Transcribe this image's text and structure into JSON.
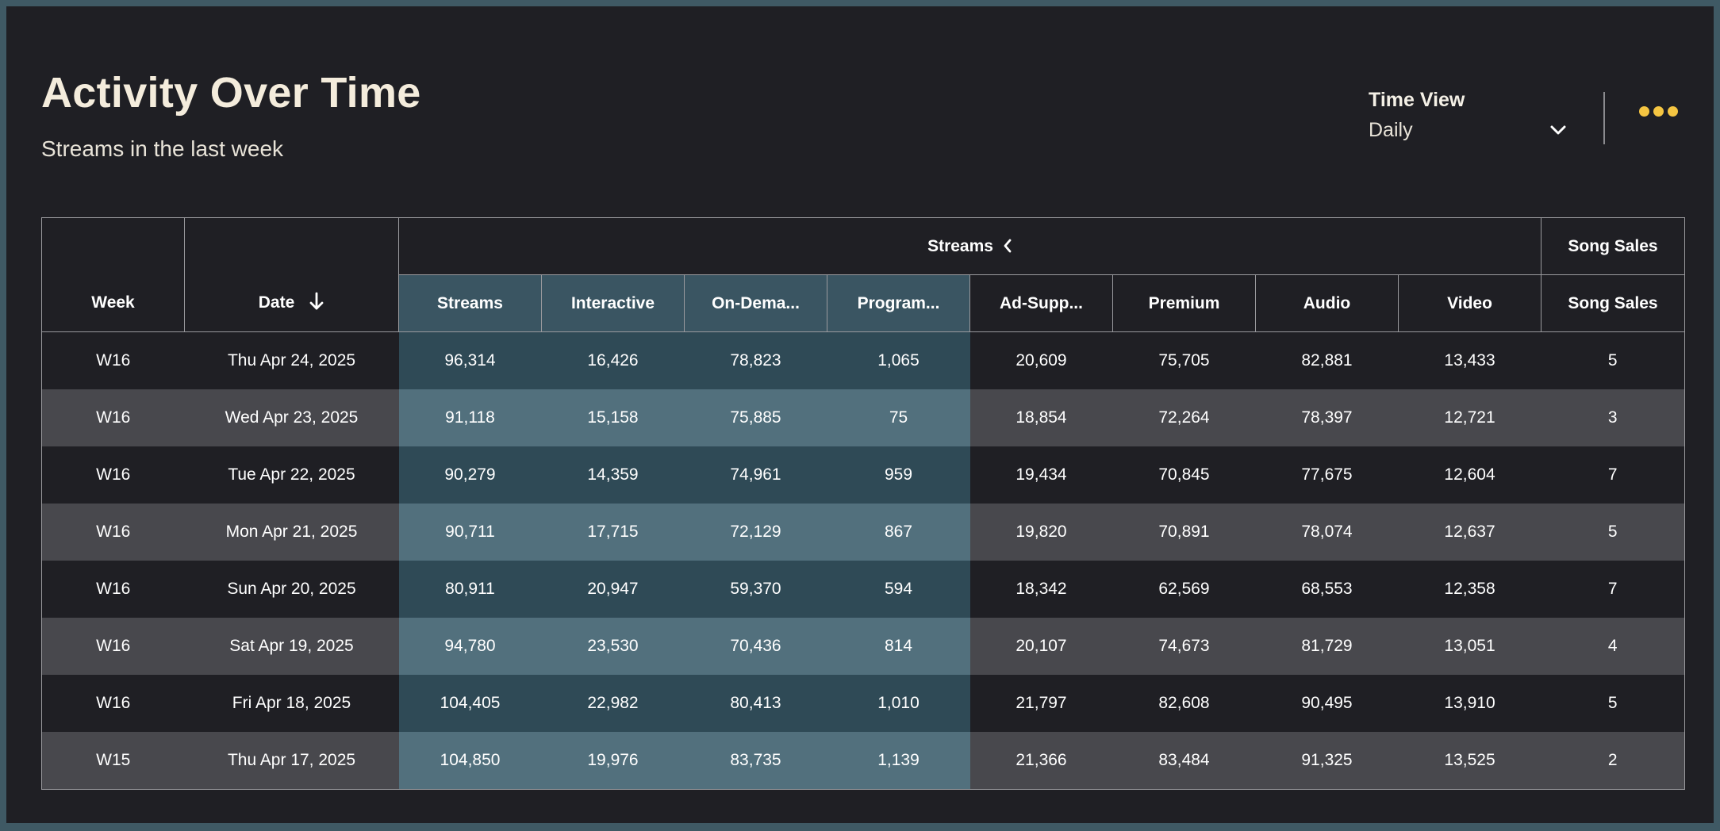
{
  "header": {
    "title": "Activity Over Time",
    "subtitle": "Streams in the last week"
  },
  "time_view": {
    "label": "Time View",
    "value": "Daily",
    "icon": "chevron-down-icon"
  },
  "more_menu": {
    "icon": "more-dots-icon",
    "color": "#f5c542"
  },
  "table": {
    "group_headers": {
      "streams": "Streams",
      "song_sales": "Song Sales"
    },
    "columns": {
      "week": "Week",
      "date": "Date",
      "streams": "Streams",
      "interactive": "Interactive",
      "on_demand": "On-Dema...",
      "programmed": "Program...",
      "ad_supported": "Ad-Supp...",
      "premium": "Premium",
      "audio": "Audio",
      "video": "Video",
      "song_sales": "Song Sales"
    },
    "rows": [
      {
        "week": "W16",
        "date": "Thu Apr 24, 2025",
        "streams": "96,314",
        "interactive": "16,426",
        "on_demand": "78,823",
        "programmed": "1,065",
        "ad_supported": "20,609",
        "premium": "75,705",
        "audio": "82,881",
        "video": "13,433",
        "song_sales": "5"
      },
      {
        "week": "W16",
        "date": "Wed Apr 23, 2025",
        "streams": "91,118",
        "interactive": "15,158",
        "on_demand": "75,885",
        "programmed": "75",
        "ad_supported": "18,854",
        "premium": "72,264",
        "audio": "78,397",
        "video": "12,721",
        "song_sales": "3"
      },
      {
        "week": "W16",
        "date": "Tue Apr 22, 2025",
        "streams": "90,279",
        "interactive": "14,359",
        "on_demand": "74,961",
        "programmed": "959",
        "ad_supported": "19,434",
        "premium": "70,845",
        "audio": "77,675",
        "video": "12,604",
        "song_sales": "7"
      },
      {
        "week": "W16",
        "date": "Mon Apr 21, 2025",
        "streams": "90,711",
        "interactive": "17,715",
        "on_demand": "72,129",
        "programmed": "867",
        "ad_supported": "19,820",
        "premium": "70,891",
        "audio": "78,074",
        "video": "12,637",
        "song_sales": "5"
      },
      {
        "week": "W16",
        "date": "Sun Apr 20, 2025",
        "streams": "80,911",
        "interactive": "20,947",
        "on_demand": "59,370",
        "programmed": "594",
        "ad_supported": "18,342",
        "premium": "62,569",
        "audio": "68,553",
        "video": "12,358",
        "song_sales": "7"
      },
      {
        "week": "W16",
        "date": "Sat Apr 19, 2025",
        "streams": "94,780",
        "interactive": "23,530",
        "on_demand": "70,436",
        "programmed": "814",
        "ad_supported": "20,107",
        "premium": "74,673",
        "audio": "81,729",
        "video": "13,051",
        "song_sales": "4"
      },
      {
        "week": "W16",
        "date": "Fri Apr 18, 2025",
        "streams": "104,405",
        "interactive": "22,982",
        "on_demand": "80,413",
        "programmed": "1,010",
        "ad_supported": "21,797",
        "premium": "82,608",
        "audio": "90,495",
        "video": "13,910",
        "song_sales": "5"
      },
      {
        "week": "W15",
        "date": "Thu Apr 17, 2025",
        "streams": "104,850",
        "interactive": "19,976",
        "on_demand": "83,735",
        "programmed": "1,139",
        "ad_supported": "21,366",
        "premium": "83,484",
        "audio": "91,325",
        "video": "13,525",
        "song_sales": "2"
      }
    ]
  },
  "colors": {
    "background": "#1f1f24",
    "row_alt": "#48484d",
    "highlight": "#2f4a56",
    "highlight_alt": "#52707d",
    "accent": "#f5c542"
  }
}
